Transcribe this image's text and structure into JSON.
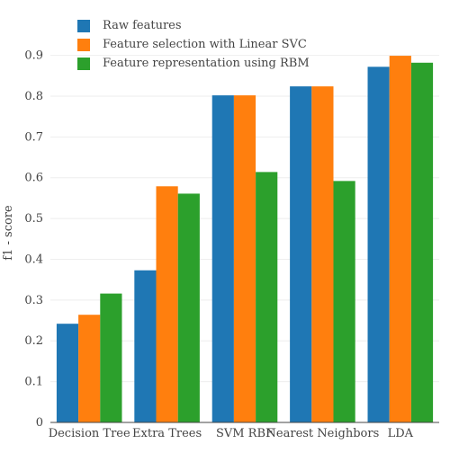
{
  "chart_data": {
    "type": "bar",
    "categories": [
      "Decision Tree",
      "Extra Trees",
      "SVM RBF",
      "Nearest Neighbors",
      "LDA"
    ],
    "series": [
      {
        "name": "Raw features",
        "color": "#1f77b4",
        "values": [
          0.242,
          0.373,
          0.802,
          0.824,
          0.872
        ]
      },
      {
        "name": "Feature selection with Linear SVC",
        "color": "#ff7f0e",
        "values": [
          0.264,
          0.579,
          0.802,
          0.824,
          0.899
        ]
      },
      {
        "name": "Feature representation using RBM",
        "color": "#2ca02c",
        "values": [
          0.316,
          0.561,
          0.614,
          0.592,
          0.882
        ]
      }
    ],
    "xlabel": "",
    "ylabel": "f1 - score",
    "ylim": [
      0,
      0.93
    ],
    "yticks": [
      "0",
      "0.1",
      "0.2",
      "0.3",
      "0.4",
      "0.5",
      "0.6",
      "0.7",
      "0.8",
      "0.9"
    ],
    "grid": true,
    "legend_position": "top-left"
  }
}
